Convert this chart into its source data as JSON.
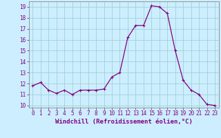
{
  "x": [
    0,
    1,
    2,
    3,
    4,
    5,
    6,
    7,
    8,
    9,
    10,
    11,
    12,
    13,
    14,
    15,
    16,
    17,
    18,
    19,
    20,
    21,
    22,
    23
  ],
  "y": [
    11.8,
    12.1,
    11.4,
    11.1,
    11.4,
    11.0,
    11.4,
    11.4,
    11.4,
    11.5,
    12.6,
    13.0,
    16.2,
    17.3,
    17.3,
    19.1,
    19.0,
    18.4,
    15.0,
    12.3,
    11.4,
    11.0,
    10.1,
    10.0
  ],
  "line_color": "#800080",
  "marker": "P",
  "marker_size": 2.5,
  "bg_color": "#cceeff",
  "grid_color": "#99cccc",
  "xlabel": "Windchill (Refroidissement éolien,°C)",
  "xlabel_fontsize": 6.5,
  "ylim": [
    9.8,
    19.5
  ],
  "yticks": [
    10,
    11,
    12,
    13,
    14,
    15,
    16,
    17,
    18,
    19
  ],
  "xlim": [
    -0.5,
    23.5
  ],
  "xticks": [
    0,
    1,
    2,
    3,
    4,
    5,
    6,
    7,
    8,
    9,
    10,
    11,
    12,
    13,
    14,
    15,
    16,
    17,
    18,
    19,
    20,
    21,
    22,
    23
  ],
  "tick_color": "#800080",
  "tick_fontsize": 5.5,
  "spine_color": "#888888"
}
